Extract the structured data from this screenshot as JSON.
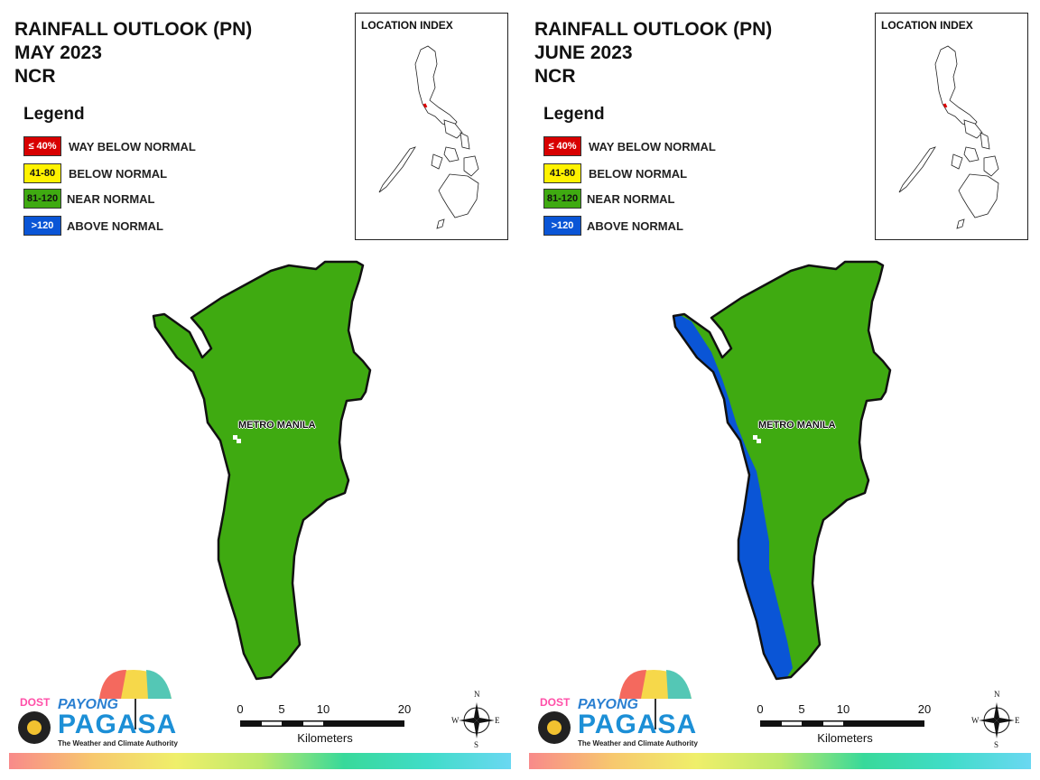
{
  "legend": {
    "title": "Legend",
    "items": [
      {
        "range": "≤ 40%",
        "label": "WAY BELOW NORMAL",
        "color": "#d80000",
        "text_color": "#ffffff"
      },
      {
        "range": "41-80",
        "label": "BELOW NORMAL",
        "color": "#fff200",
        "text_color": "#111111"
      },
      {
        "range": "81-120",
        "label": "NEAR NORMAL",
        "color": "#3faa11",
        "text_color": "#111111"
      },
      {
        "range": ">120",
        "label": "ABOVE NORMAL",
        "color": "#0a55d6",
        "text_color": "#ffffff"
      }
    ]
  },
  "location_index": {
    "title": "LOCATION INDEX"
  },
  "map_label": "METRO MANILA",
  "colors": {
    "near_normal": "#3faa11",
    "above_normal": "#0a55d6"
  },
  "panels": [
    {
      "title_line1": "RAINFALL OUTLOOK (PN)",
      "title_line2": "MAY 2023",
      "title_line3": "NCR",
      "category": "NEAR NORMAL"
    },
    {
      "title_line1": "RAINFALL OUTLOOK (PN)",
      "title_line2": "JUNE 2023",
      "title_line3": "NCR",
      "category": "NEAR NORMAL, ABOVE NORMAL along the western coast"
    }
  ],
  "scalebar": {
    "ticks": [
      "0",
      "5",
      "10",
      "20"
    ],
    "unit": "Kilometers"
  },
  "compass": {
    "n": "N",
    "s": "S",
    "e": "E",
    "w": "W"
  },
  "logo": {
    "dost": "DOST",
    "payong": "PAYONG",
    "pagasa": "PAGASA",
    "tagline": "The Weather and Climate Authority"
  }
}
